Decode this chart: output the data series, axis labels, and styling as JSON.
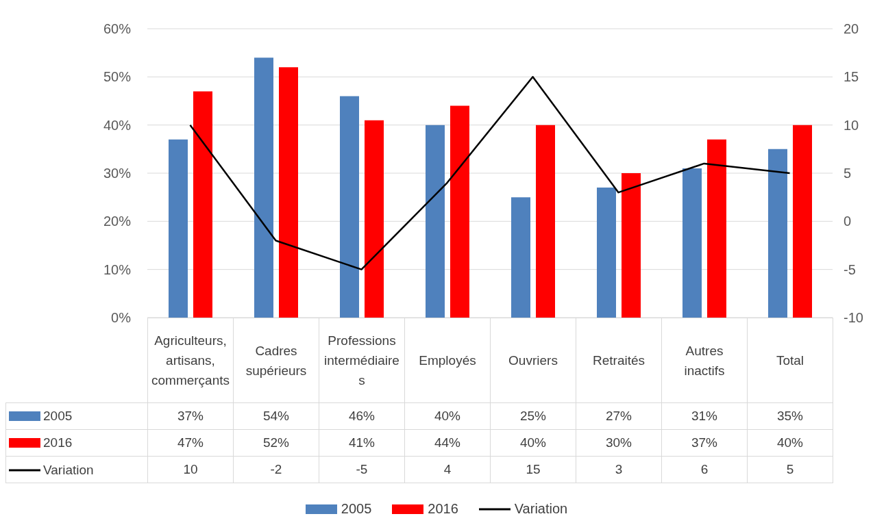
{
  "chart_data": {
    "type": "bar",
    "categories": [
      "Agriculteurs, artisans, commerçants",
      "Cadres supérieurs",
      "Professions intermédiaires",
      "Employés",
      "Ouvriers",
      "Retraités",
      "Autres inactifs",
      "Total"
    ],
    "series": [
      {
        "name": "2005",
        "color": "#4f81bd",
        "values": [
          37,
          54,
          46,
          40,
          25,
          27,
          31,
          35
        ],
        "value_labels": [
          "37%",
          "54%",
          "46%",
          "40%",
          "25%",
          "27%",
          "31%",
          "35%"
        ]
      },
      {
        "name": "2016",
        "color": "#ff0000",
        "values": [
          47,
          52,
          41,
          44,
          40,
          30,
          37,
          40
        ],
        "value_labels": [
          "47%",
          "52%",
          "41%",
          "44%",
          "40%",
          "30%",
          "37%",
          "40%"
        ]
      },
      {
        "name": "Variation",
        "type": "line",
        "axis": "y2",
        "color": "#000000",
        "values": [
          10,
          -2,
          -5,
          4,
          15,
          3,
          6,
          5
        ],
        "value_labels": [
          "10",
          "-2",
          "-5",
          "4",
          "15",
          "3",
          "6",
          "5"
        ]
      }
    ],
    "ylim": [
      0,
      60
    ],
    "yticks": [
      {
        "value": 0,
        "label": "0%"
      },
      {
        "value": 10,
        "label": "10%"
      },
      {
        "value": 20,
        "label": "20%"
      },
      {
        "value": 30,
        "label": "30%"
      },
      {
        "value": 40,
        "label": "40%"
      },
      {
        "value": 50,
        "label": "50%"
      },
      {
        "value": 60,
        "label": "60%"
      }
    ],
    "y2lim": [
      -10,
      20
    ],
    "y2ticks": [
      -10,
      -5,
      0,
      5,
      10,
      15,
      20
    ],
    "grid": "y",
    "legend": "bottom",
    "marker": "none",
    "line_style": "solid"
  }
}
